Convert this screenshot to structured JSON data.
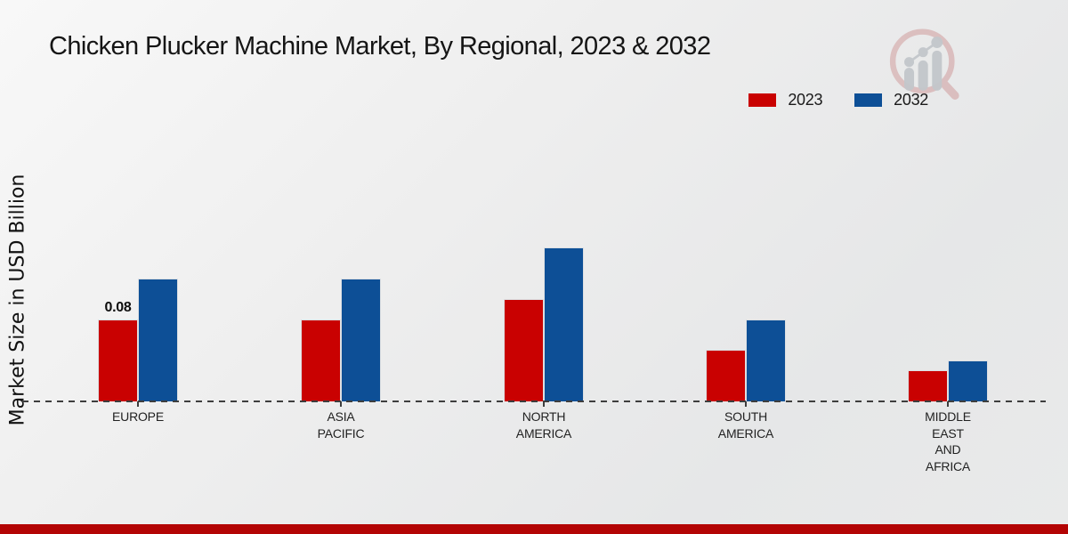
{
  "title": "Chicken Plucker Machine Market, By Regional, 2023 & 2032",
  "ylabel": "Market Size in USD Billion",
  "legend": [
    {
      "label": "2023",
      "color": "#c90101"
    },
    {
      "label": "2032",
      "color": "#0d4f96"
    }
  ],
  "colors": {
    "bar_2023": "#c90101",
    "bar_2032": "#0d4f96",
    "axis": "#3e3e3e",
    "footer_accent": "#b30404",
    "background": "#ebebec"
  },
  "chart_data": {
    "type": "bar",
    "title": "Chicken Plucker Machine Market, By Regional, 2023 & 2032",
    "xlabel": "",
    "ylabel": "Market Size in USD Billion",
    "ylim": [
      0,
      0.16
    ],
    "grid": false,
    "legend_position": "top-right",
    "baseline_style": "dashed",
    "categories": [
      "EUROPE",
      "ASIA\nPACIFIC",
      "NORTH\nAMERICA",
      "SOUTH\nAMERICA",
      "MIDDLE\nEAST\nAND\nAFRICA"
    ],
    "series": [
      {
        "name": "2023",
        "color": "#c90101",
        "values": [
          0.08,
          0.08,
          0.1,
          0.05,
          0.03
        ]
      },
      {
        "name": "2032",
        "color": "#0d4f96",
        "values": [
          0.12,
          0.12,
          0.15,
          0.08,
          0.04
        ]
      }
    ],
    "annotations": [
      {
        "category_index": 0,
        "series_index": 0,
        "text": "0.08"
      }
    ]
  },
  "watermark": {
    "name": "market-research-future-logo"
  }
}
